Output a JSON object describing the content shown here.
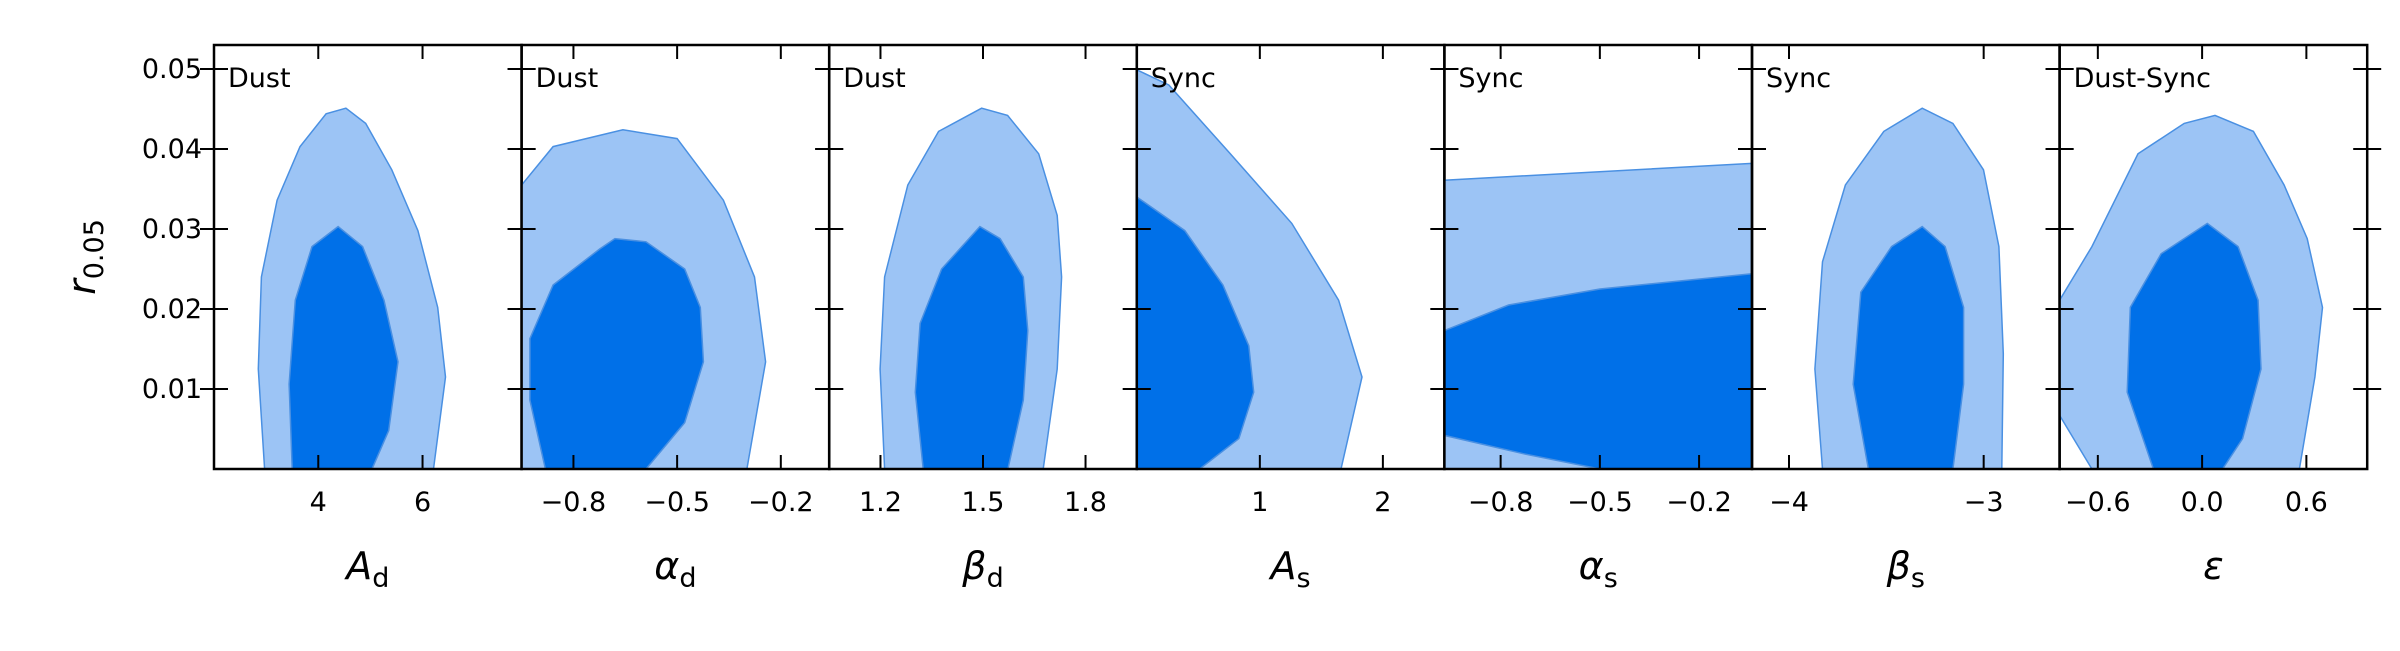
{
  "chart_data": [
    {
      "type": "contour",
      "label": "Dust",
      "xlabel": "A",
      "xlabel_subscript": "d",
      "ylabel": "r",
      "ylabel_subscript": "0.05",
      "ylim": [
        0,
        0.053
      ],
      "yticks": [
        0.01,
        0.02,
        0.03,
        0.04,
        0.05
      ],
      "xlim": [
        2,
        7.9
      ],
      "xticks": [
        4,
        6
      ],
      "contours": [
        {
          "color": "#9cc4f5",
          "x": [
            2.97,
            2.85,
            2.91,
            3.21,
            3.65,
            4.15,
            4.53,
            4.91,
            5.41,
            5.91,
            6.29,
            6.44,
            6.21
          ],
          "y": [
            0,
            0.0125,
            0.024,
            0.0336,
            0.0403,
            0.0444,
            0.0451,
            0.0432,
            0.0374,
            0.0298,
            0.0202,
            0.0115,
            0
          ]
        },
        {
          "color": "#0070e8",
          "x": [
            3.5,
            3.44,
            3.56,
            3.88,
            4.38,
            4.85,
            5.26,
            5.53,
            5.35,
            5.03
          ],
          "y": [
            0,
            0.0106,
            0.0211,
            0.0278,
            0.0303,
            0.0278,
            0.0211,
            0.0134,
            0.0048,
            0
          ]
        }
      ]
    },
    {
      "type": "contour",
      "label": "Dust",
      "xlabel": "α",
      "xlabel_subscript": "d",
      "xlim": [
        -0.95,
        -0.06
      ],
      "xticks": [
        {
          "value": -0.8,
          "label": "−0.8"
        },
        {
          "value": -0.5,
          "label": "−0.5"
        },
        {
          "value": -0.2,
          "label": "−0.2"
        }
      ],
      "contours": [
        {
          "color": "#9cc4f5",
          "x": [
            -0.95,
            -0.95,
            -0.859,
            -0.657,
            -0.5,
            -0.366,
            -0.276,
            -0.244,
            -0.298
          ],
          "y": [
            0,
            0.0355,
            0.0403,
            0.0424,
            0.0413,
            0.0336,
            0.024,
            0.0134,
            0
          ]
        },
        {
          "color": "#0070e8",
          "x": [
            -0.881,
            -0.926,
            -0.926,
            -0.859,
            -0.724,
            -0.68,
            -0.59,
            -0.478,
            -0.433,
            -0.424,
            -0.478,
            -0.59
          ],
          "y": [
            0,
            0.0086,
            0.0163,
            0.023,
            0.0275,
            0.0288,
            0.0284,
            0.025,
            0.0202,
            0.0134,
            0.0058,
            0
          ]
        }
      ]
    },
    {
      "type": "contour",
      "label": "Dust",
      "xlabel": "β",
      "xlabel_subscript": "d",
      "xlim": [
        1.05,
        1.95
      ],
      "xticks": [
        1.2,
        1.5,
        1.8
      ],
      "contours": [
        {
          "color": "#9cc4f5",
          "x": [
            1.212,
            1.199,
            1.212,
            1.28,
            1.37,
            1.496,
            1.572,
            1.663,
            1.717,
            1.73,
            1.717,
            1.676
          ],
          "y": [
            0,
            0.0125,
            0.024,
            0.0355,
            0.0422,
            0.0451,
            0.0442,
            0.0394,
            0.0317,
            0.024,
            0.0125,
            0
          ]
        },
        {
          "color": "#0070e8",
          "x": [
            1.325,
            1.302,
            1.316,
            1.379,
            1.491,
            1.55,
            1.618,
            1.631,
            1.618,
            1.573
          ],
          "y": [
            0,
            0.0096,
            0.0182,
            0.025,
            0.0303,
            0.0288,
            0.024,
            0.0173,
            0.0086,
            0
          ]
        }
      ]
    },
    {
      "type": "contour",
      "label": "Sync",
      "xlabel": "A",
      "xlabel_subscript": "s",
      "xlim": [
        0,
        2.5
      ],
      "xticks": [
        1,
        2
      ],
      "contours": [
        {
          "color": "#9cc4f5",
          "x": [
            0,
            0,
            0.26,
            0.76,
            1.26,
            1.64,
            1.83,
            1.66
          ],
          "y": [
            0,
            0.0499,
            0.048,
            0.0394,
            0.0307,
            0.0211,
            0.0115,
            0
          ]
        },
        {
          "color": "#0070e8",
          "x": [
            0,
            0,
            0.39,
            0.7,
            0.91,
            0.95,
            0.83,
            0.51
          ],
          "y": [
            0,
            0.034,
            0.0298,
            0.023,
            0.0154,
            0.0096,
            0.0038,
            0
          ]
        }
      ]
    },
    {
      "type": "contour",
      "label": "Sync",
      "xlabel": "α",
      "xlabel_subscript": "s",
      "xlim": [
        -0.97,
        -0.04
      ],
      "xticks": [
        {
          "value": -0.8,
          "label": "−0.8"
        },
        {
          "value": -0.5,
          "label": "−0.5"
        },
        {
          "value": -0.2,
          "label": "−0.2"
        }
      ],
      "contours": [
        {
          "color": "#9cc4f5",
          "x": [
            -0.97,
            -0.97,
            -0.04,
            -0.04
          ],
          "y": [
            0,
            0.0361,
            0.0382,
            0
          ]
        },
        {
          "color": "#0070e8",
          "x": [
            -0.97,
            -0.776,
            -0.5,
            -0.04,
            -0.04,
            -0.5,
            -0.73,
            -0.97
          ],
          "y": [
            0.0173,
            0.0205,
            0.0225,
            0.0244,
            0,
            0,
            0.0019,
            0.0042
          ]
        }
      ]
    },
    {
      "type": "contour",
      "label": "Sync",
      "xlabel": "β",
      "xlabel_subscript": "s",
      "xlim": [
        -4.19,
        -2.61
      ],
      "xticks": [
        {
          "value": -4,
          "label": "−4"
        },
        {
          "value": -3,
          "label": "−3"
        }
      ],
      "contours": [
        {
          "color": "#9cc4f5",
          "x": [
            -3.828,
            -3.867,
            -3.828,
            -3.71,
            -3.513,
            -3.316,
            -3.158,
            -3.001,
            -2.922,
            -2.899,
            -2.907
          ],
          "y": [
            0,
            0.0125,
            0.0259,
            0.0355,
            0.0422,
            0.0451,
            0.0432,
            0.0374,
            0.0278,
            0.0144,
            0
          ]
        },
        {
          "color": "#0070e8",
          "x": [
            -3.592,
            -3.67,
            -3.631,
            -3.473,
            -3.316,
            -3.198,
            -3.103,
            -3.103,
            -3.158
          ],
          "y": [
            0,
            0.0106,
            0.0221,
            0.0278,
            0.0303,
            0.0278,
            0.0202,
            0.0106,
            0
          ]
        }
      ]
    },
    {
      "type": "contour",
      "label": "Dust-Sync",
      "xlabel": "ε",
      "xlim": [
        -0.82,
        0.95
      ],
      "xticks": [
        {
          "value": -0.6,
          "label": "−0.6"
        },
        {
          "value": 0,
          "label": "0.0"
        },
        0.6
      ],
      "contours": [
        {
          "color": "#9cc4f5",
          "x": [
            -0.634,
            -0.82,
            -0.82,
            -0.634,
            -0.369,
            -0.103,
            0.074,
            0.295,
            0.472,
            0.605,
            0.693,
            0.649,
            0.56
          ],
          "y": [
            0,
            0.0067,
            0.0211,
            0.0278,
            0.0394,
            0.0432,
            0.0442,
            0.0422,
            0.0355,
            0.0288,
            0.0202,
            0.0115,
            0
          ]
        },
        {
          "color": "#0070e8",
          "x": [
            -0.28,
            -0.431,
            -0.413,
            -0.236,
            0.03,
            0.207,
            0.322,
            0.339,
            0.233,
            0.118
          ],
          "y": [
            0,
            0.0096,
            0.0202,
            0.0269,
            0.0307,
            0.0278,
            0.0211,
            0.0125,
            0.0038,
            0
          ]
        }
      ]
    }
  ]
}
